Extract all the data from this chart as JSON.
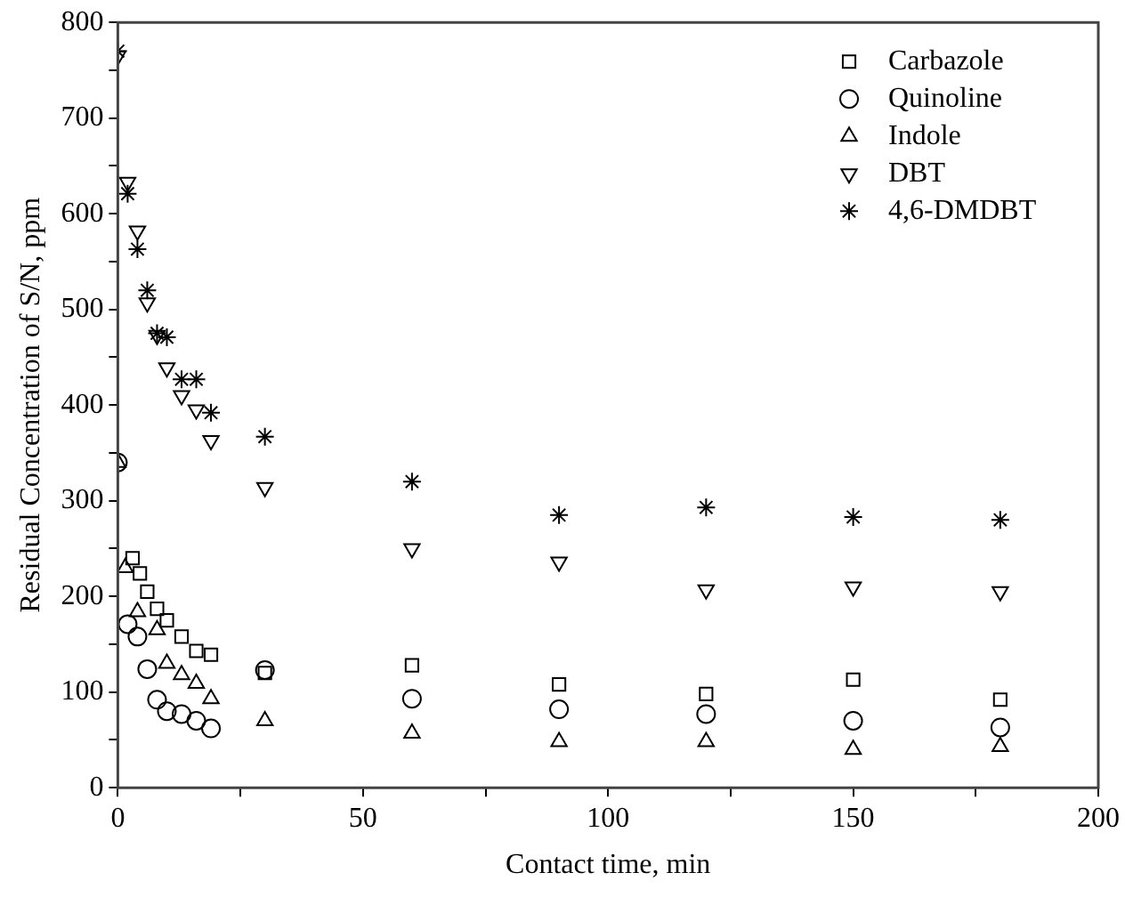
{
  "chart_data": {
    "type": "scatter",
    "xlabel": "Contact time, min",
    "ylabel": "Residual Concentration of S/N, ppm",
    "xlim": [
      0,
      200
    ],
    "xticks": [
      0,
      50,
      100,
      150,
      200
    ],
    "ylim": [
      0,
      800
    ],
    "yticks": [
      0,
      100,
      200,
      300,
      400,
      500,
      600,
      700,
      800
    ],
    "grid": false,
    "legend": "top right",
    "series": [
      {
        "name": "Carbazole",
        "color": "#000000",
        "marker": "square",
        "x": [
          3,
          4.5,
          6,
          8,
          10,
          13,
          16,
          19,
          30,
          60,
          90,
          120,
          150,
          180
        ],
        "values": [
          240,
          224,
          205,
          187,
          175,
          158,
          143,
          139,
          120,
          128,
          108,
          98,
          113,
          92
        ]
      },
      {
        "name": "Quinoline",
        "color": "#000000",
        "marker": "circle",
        "x": [
          0,
          2,
          4,
          6,
          8,
          10,
          13,
          16,
          19,
          30,
          60,
          90,
          120,
          150,
          180
        ],
        "values": [
          340,
          171,
          158,
          124,
          92,
          80,
          77,
          70,
          62,
          123,
          93,
          82,
          77,
          70,
          63
        ]
      },
      {
        "name": "Indole",
        "color": "#000000",
        "marker": "triangle",
        "x": [
          0,
          1.5,
          4,
          8,
          10,
          13,
          16,
          19,
          30,
          60,
          90,
          120,
          150,
          180
        ],
        "values": [
          340,
          230,
          184,
          165,
          130,
          118,
          109,
          93,
          70,
          57,
          48,
          48,
          40,
          43
        ]
      },
      {
        "name": "DBT",
        "color": "#000000",
        "marker": "triangle-down",
        "x": [
          0,
          2,
          4,
          6,
          8,
          10,
          13,
          16,
          19,
          30,
          60,
          90,
          120,
          150,
          180
        ],
        "values": [
          765,
          633,
          582,
          507,
          473,
          439,
          410,
          395,
          363,
          314,
          250,
          236,
          207,
          210,
          205
        ]
      },
      {
        "name": "4,6-DMDBT",
        "color": "#000000",
        "marker": "cross",
        "x": [
          0,
          2,
          4,
          6,
          8,
          10,
          13,
          16,
          19,
          30,
          60,
          90,
          120,
          150,
          180
        ],
        "values": [
          770,
          621,
          563,
          520,
          475,
          471,
          427,
          427,
          392,
          367,
          320,
          285,
          293,
          283,
          280
        ]
      }
    ]
  }
}
